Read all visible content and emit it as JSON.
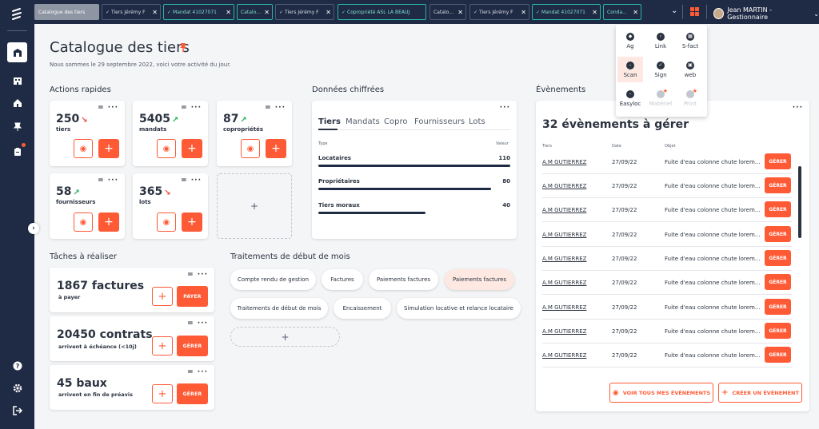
{
  "colors": {
    "primary": "#1f2a44",
    "accent": "#ff5a36",
    "tab_teal": "#2bb3a3",
    "trend_up": "#27ae60",
    "trend_down": "#e74c3c",
    "highlight": "#fde9e2"
  },
  "sidebar": {
    "logo": "app-logo",
    "items": [
      {
        "name": "home",
        "icon": "home-dashboard-icon",
        "active": true
      },
      {
        "name": "building",
        "icon": "building-icon"
      },
      {
        "name": "house",
        "icon": "house-icon"
      },
      {
        "name": "pin",
        "icon": "pin-icon"
      },
      {
        "name": "clipboard",
        "icon": "clipboard-icon",
        "badge": true
      }
    ],
    "bottom": [
      {
        "icon": "help-icon"
      },
      {
        "icon": "settings-icon"
      },
      {
        "icon": "logout-icon"
      }
    ]
  },
  "tabs": [
    {
      "label": "Catalogue des tiers",
      "first": true
    },
    {
      "label": "Tiers Jérémy F",
      "check": true
    },
    {
      "label": "Mandat 41027071",
      "check": true,
      "teal": true
    },
    {
      "label": "Catalo...",
      "teal": true
    },
    {
      "label": "Tiers Jérémy F",
      "check": true
    },
    {
      "label": "Copropriété ASL LA BEAUJ",
      "check": true,
      "teal": true
    },
    {
      "label": "Catalo..."
    },
    {
      "label": "Tiers Jérémy F",
      "check": true
    },
    {
      "label": "Mandat 41027071",
      "check": true,
      "teal": true
    },
    {
      "label": "Conda...",
      "teal": true
    }
  ],
  "user": {
    "name": "Jean MARTIN - Gestionnaire"
  },
  "header": {
    "title": "Catalogue des tiers",
    "subtitle": "Nous sommes le 29 septembre 2022, voici votre activité du jour."
  },
  "quick_actions": {
    "title": "Actions rapides",
    "items": [
      {
        "value": "250",
        "trend": "down",
        "label": "tiers"
      },
      {
        "value": "5405",
        "trend": "up",
        "label": "mandats"
      },
      {
        "value": "87",
        "trend": "up",
        "label": "copropriétés"
      },
      {
        "value": "58",
        "trend": "up",
        "label": "fournisseurs"
      },
      {
        "value": "365",
        "trend": "down",
        "label": "lots"
      }
    ]
  },
  "figures": {
    "title": "Données chiffrées",
    "tabs": [
      "Tiers",
      "Mandats",
      "Copro",
      "Fournisseurs",
      "Lots"
    ],
    "col_type": "Type",
    "col_value": "Valeur",
    "rows": [
      {
        "label": "Locataires",
        "value": "110",
        "ratio": 1.0
      },
      {
        "label": "Propriétaires",
        "value": "80",
        "ratio": 0.9
      },
      {
        "label": "Tiers moraux",
        "value": "40",
        "ratio": 0.56
      }
    ]
  },
  "tasks": {
    "title": "Tâches à réaliser",
    "items": [
      {
        "count": "1867 factures",
        "sub": "à payer",
        "action": "PAYER"
      },
      {
        "count": "20450 contrats",
        "sub": "arrivent à échéance (<10j)",
        "action": "GÉRER"
      },
      {
        "count": "45 baux",
        "sub": "arrivent en fin de préavis",
        "action": "GÉRER"
      }
    ]
  },
  "month_start": {
    "title": "Traitements de début de mois",
    "pills": [
      "Compte rendu de gestion",
      "Factures",
      "Paiements factures",
      "Paiements factures",
      "Traitements de début de mois",
      "Encaissement",
      "Simulation locative et relance locataire"
    ]
  },
  "events": {
    "title": "Évènements",
    "count_title": "32 évènements à gérer",
    "col_tiers": "Tiers",
    "col_date": "Date",
    "col_objet": "Objet",
    "rows": [
      {
        "tiers": "A.M GUTIERREZ",
        "date": "27/09/22",
        "objet": "Fuite d'eau colonne chute lorem...",
        "action": "GÉRER"
      },
      {
        "tiers": "A.M GUTIERREZ",
        "date": "27/09/22",
        "objet": "Fuite d'eau colonne chute lorem...",
        "action": "GÉRER"
      },
      {
        "tiers": "A.M GUTIERREZ",
        "date": "27/09/22",
        "objet": "Fuite d'eau colonne chute lorem...",
        "action": "GÉRER"
      },
      {
        "tiers": "A.M GUTIERREZ",
        "date": "27/09/22",
        "objet": "Fuite d'eau colonne chute lorem...",
        "action": "GÉRER"
      },
      {
        "tiers": "A.M GUTIERREZ",
        "date": "27/09/22",
        "objet": "Fuite d'eau colonne chute lorem...",
        "action": "GÉRER"
      },
      {
        "tiers": "A.M GUTIERREZ",
        "date": "27/09/22",
        "objet": "Fuite d'eau colonne chute lorem...",
        "action": "GÉRER"
      },
      {
        "tiers": "A.M GUTIERREZ",
        "date": "27/09/22",
        "objet": "Fuite d'eau colonne chute lorem...",
        "action": "GÉRER"
      },
      {
        "tiers": "A.M GUTIERREZ",
        "date": "27/09/22",
        "objet": "Fuite d'eau colonne chute lorem...",
        "action": "GÉRER"
      },
      {
        "tiers": "A.M GUTIERREZ",
        "date": "27/09/22",
        "objet": "Fuite d'eau colonne chute lorem...",
        "action": "GÉRER"
      }
    ],
    "see_all": "VOIR TOUS MES ÉVÈNEMENTS",
    "create": "CRÉER UN ÉVÈNEMENT"
  },
  "apps_menu": [
    {
      "label": "Ag",
      "icon": "ag-icon"
    },
    {
      "label": "Link",
      "icon": "link-icon"
    },
    {
      "label": "S-fact",
      "icon": "sfact-icon"
    },
    {
      "label": "Scan",
      "icon": "scan-icon",
      "highlight": true
    },
    {
      "label": "Sign",
      "icon": "sign-icon"
    },
    {
      "label": "web",
      "icon": "web-icon"
    },
    {
      "label": "Easyloc",
      "icon": "easyloc-icon"
    },
    {
      "label": "Matériel",
      "icon": "materiel-icon",
      "disabled": true
    },
    {
      "label": "Print",
      "icon": "print-icon",
      "disabled": true
    }
  ]
}
